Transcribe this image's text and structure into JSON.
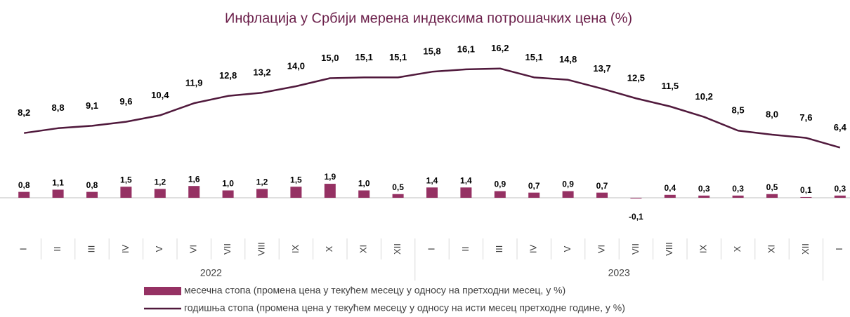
{
  "chart_data": {
    "type": "combo",
    "title": "Инфлација у Србији мерена индексима потрошачких цена (%)",
    "categories": [
      {
        "label": "I",
        "year": "2022"
      },
      {
        "label": "II",
        "year": "2022"
      },
      {
        "label": "III",
        "year": "2022"
      },
      {
        "label": "IV",
        "year": "2022"
      },
      {
        "label": "V",
        "year": "2022"
      },
      {
        "label": "VI",
        "year": "2022"
      },
      {
        "label": "VII",
        "year": "2022"
      },
      {
        "label": "VIII",
        "year": "2022"
      },
      {
        "label": "IX",
        "year": "2022"
      },
      {
        "label": "X",
        "year": "2022"
      },
      {
        "label": "XI",
        "year": "2022"
      },
      {
        "label": "XII",
        "year": "2022"
      },
      {
        "label": "I",
        "year": "2023"
      },
      {
        "label": "II",
        "year": "2023"
      },
      {
        "label": "III",
        "year": "2023"
      },
      {
        "label": "IV",
        "year": "2023"
      },
      {
        "label": "V",
        "year": "2023"
      },
      {
        "label": "VI",
        "year": "2023"
      },
      {
        "label": "VII",
        "year": "2023"
      },
      {
        "label": "VIII",
        "year": "2023"
      },
      {
        "label": "IX",
        "year": "2023"
      },
      {
        "label": "X",
        "year": "2023"
      },
      {
        "label": "XI",
        "year": "2023"
      },
      {
        "label": "XII",
        "year": "2023"
      },
      {
        "label": "I",
        "year": null
      }
    ],
    "series": [
      {
        "name": "месечна стопа (промена цена у текућем месецу у односу на претходни месец, у %)",
        "type": "bar",
        "color": "#953163",
        "values": [
          0.8,
          1.1,
          0.8,
          1.5,
          1.2,
          1.6,
          1.0,
          1.2,
          1.5,
          1.9,
          1.0,
          0.5,
          1.4,
          1.4,
          0.9,
          0.7,
          0.9,
          0.7,
          -0.1,
          0.4,
          0.3,
          0.3,
          0.5,
          0.1,
          0.3
        ],
        "value_labels": [
          "0,8",
          "1,1",
          "0,8",
          "1,5",
          "1,2",
          "1,6",
          "1,0",
          "1,2",
          "1,5",
          "1,9",
          "1,0",
          "0,5",
          "1,4",
          "1,4",
          "0,9",
          "0,7",
          "0,9",
          "0,7",
          "-0,1",
          "0,4",
          "0,3",
          "0,3",
          "0,5",
          "0,1",
          "0,3"
        ]
      },
      {
        "name": "годишња стопа (промена цена у текућем месецу у односу на исти месец претходне године, у %)",
        "type": "line",
        "color": "#50193c",
        "values": [
          8.2,
          8.8,
          9.1,
          9.6,
          10.4,
          11.9,
          12.8,
          13.2,
          14.0,
          15.0,
          15.1,
          15.1,
          15.8,
          16.1,
          16.2,
          15.1,
          14.8,
          13.7,
          12.5,
          11.5,
          10.2,
          8.5,
          8.0,
          7.6,
          6.4
        ],
        "value_labels": [
          "8,2",
          "8,8",
          "9,1",
          "9,6",
          "10,4",
          "11,9",
          "12,8",
          "13,2",
          "14,0",
          "15,0",
          "15,1",
          "15,1",
          "15,8",
          "16,1",
          "16,2",
          "15,1",
          "14,8",
          "13,7",
          "12,5",
          "11,5",
          "10,2",
          "8,5",
          "8,0",
          "7,6",
          "6,4"
        ]
      }
    ]
  }
}
